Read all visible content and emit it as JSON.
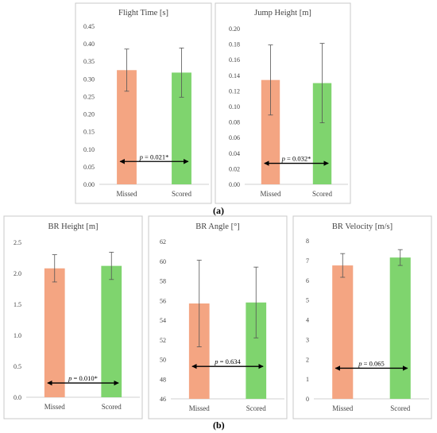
{
  "figure": {
    "panel_a_label": "(a)",
    "panel_b_label": "(b)"
  },
  "colors": {
    "missed": "#F4A582",
    "scored": "#7FD46E",
    "error_bar": "#555555",
    "frame": "#c8c8c8",
    "arrow": "#000000"
  },
  "chart_data": [
    {
      "id": "flight-time",
      "type": "bar",
      "title": "Flight Time [s]",
      "categories": [
        "Missed",
        "Scored"
      ],
      "values": [
        0.325,
        0.318
      ],
      "error": [
        0.06,
        0.07
      ],
      "ylim": [
        0,
        0.45
      ],
      "yticks": [
        "0.00",
        "0.05",
        "0.10",
        "0.15",
        "0.20",
        "0.25",
        "0.30",
        "0.35",
        "0.40",
        "0.45"
      ],
      "annotation": {
        "p": "p",
        "text": " = 0.021*",
        "y": 0.065
      }
    },
    {
      "id": "jump-height",
      "type": "bar",
      "title": "Jump Height [m]",
      "categories": [
        "Missed",
        "Scored"
      ],
      "values": [
        0.134,
        0.13
      ],
      "error": [
        0.045,
        0.051
      ],
      "ylim": [
        0,
        0.2
      ],
      "yticks": [
        "0.00",
        "0.02",
        "0.04",
        "0.06",
        "0.08",
        "0.10",
        "0.12",
        "0.14",
        "0.16",
        "0.18",
        "0.20"
      ],
      "annotation": {
        "p": "p",
        "text": " = 0.032*",
        "y": 0.027
      }
    },
    {
      "id": "br-height",
      "type": "bar",
      "title": "BR Height [m]",
      "categories": [
        "Missed",
        "Scored"
      ],
      "values": [
        2.08,
        2.12
      ],
      "error": [
        0.22,
        0.22
      ],
      "ylim": [
        0,
        2.5
      ],
      "yticks": [
        "0.0",
        "0.5",
        "1.0",
        "1.5",
        "2.0",
        "2.5"
      ],
      "annotation": {
        "p": "p",
        "text": " = 0.010*",
        "y": 0.23
      }
    },
    {
      "id": "br-angle",
      "type": "bar",
      "title": "BR Angle [°]",
      "categories": [
        "Missed",
        "Scored"
      ],
      "values": [
        55.7,
        55.8
      ],
      "error": [
        4.4,
        3.6
      ],
      "ylim": [
        46,
        62
      ],
      "yticks": [
        "46",
        "48",
        "50",
        "52",
        "54",
        "56",
        "58",
        "60",
        "62"
      ],
      "annotation": {
        "p": "p",
        "text": " = 0.634",
        "y": 49.3
      }
    },
    {
      "id": "br-velocity",
      "type": "bar",
      "title": "BR Velocity [m/s]",
      "categories": [
        "Missed",
        "Scored"
      ],
      "values": [
        6.75,
        7.15
      ],
      "error": [
        0.6,
        0.4
      ],
      "ylim": [
        0,
        8
      ],
      "yticks": [
        "0",
        "1",
        "2",
        "3",
        "4",
        "5",
        "6",
        "7",
        "8"
      ],
      "annotation": {
        "p": "p",
        "text": " = 0.065",
        "y": 1.55
      }
    }
  ]
}
